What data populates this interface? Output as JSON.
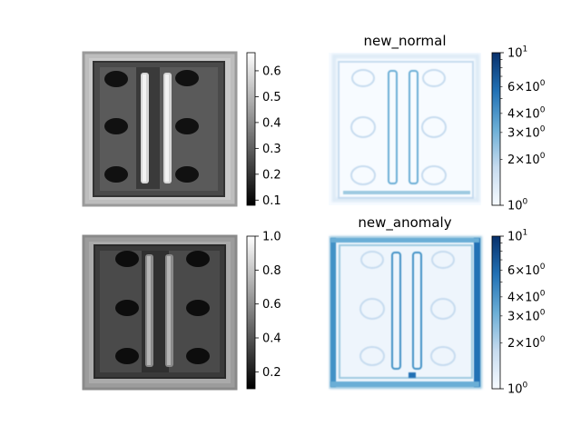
{
  "chart_data": [
    {
      "type": "heatmap",
      "panel": "top-left",
      "title": "",
      "image": "grayscale photo of a rectangular part with two vertical bars and six holes",
      "colormap": "gray",
      "colorbar": {
        "scale": "linear",
        "range": [
          0.08,
          0.67
        ],
        "ticks": [
          0.1,
          0.2,
          0.3,
          0.4,
          0.5,
          0.6
        ],
        "tick_labels": [
          "0.1",
          "0.2",
          "0.3",
          "0.4",
          "0.5",
          "0.6"
        ]
      }
    },
    {
      "type": "heatmap",
      "panel": "top-right",
      "title": "new_normal",
      "image": "blue error map of the part, faint outlines",
      "colormap": "Blues",
      "colorbar": {
        "scale": "log",
        "range": [
          1,
          10
        ],
        "major_ticks": [
          1,
          10
        ],
        "major_tick_labels": [
          "10^0",
          "10^1"
        ],
        "minor_labeled_ticks": [
          2,
          3,
          4,
          6
        ],
        "minor_tick_labels": [
          "2×10^0",
          "3×10^0",
          "4×10^0",
          "6×10^0"
        ],
        "minor_ticks": [
          2,
          3,
          4,
          5,
          6,
          7,
          8,
          9
        ]
      }
    },
    {
      "type": "heatmap",
      "panel": "bottom-left",
      "title": "",
      "image": "grayscale photo of a rectangular part with two vertical bars and six holes",
      "colormap": "gray",
      "colorbar": {
        "scale": "linear",
        "range": [
          0.1,
          1.0
        ],
        "ticks": [
          0.2,
          0.4,
          0.6,
          0.8,
          1.0
        ],
        "tick_labels": [
          "0.2",
          "0.4",
          "0.6",
          "0.8",
          "1.0"
        ]
      }
    },
    {
      "type": "heatmap",
      "panel": "bottom-right",
      "title": "new_anomaly",
      "image": "blue error map of the part, stronger edges",
      "colormap": "Blues",
      "colorbar": {
        "scale": "log",
        "range": [
          1,
          10
        ],
        "major_ticks": [
          1,
          10
        ],
        "major_tick_labels": [
          "10^0",
          "10^1"
        ],
        "minor_labeled_ticks": [
          2,
          3,
          4,
          6
        ],
        "minor_tick_labels": [
          "2×10^0",
          "3×10^0",
          "4×10^0",
          "6×10^0"
        ],
        "minor_ticks": [
          2,
          3,
          4,
          5,
          6,
          7,
          8,
          9
        ]
      }
    }
  ]
}
